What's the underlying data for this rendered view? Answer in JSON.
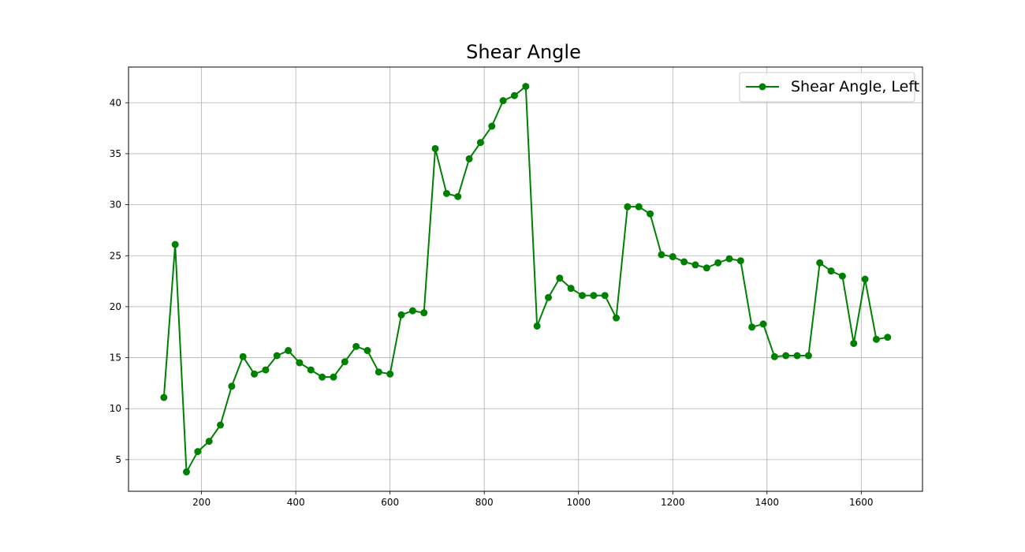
{
  "chart_data": {
    "type": "line",
    "title": "Shear Angle",
    "xlabel": "",
    "ylabel": "",
    "xlim": [
      45,
      1730
    ],
    "ylim": [
      1.9,
      43.5
    ],
    "x_ticks": [
      200,
      400,
      600,
      800,
      1000,
      1200,
      1400,
      1600
    ],
    "y_ticks": [
      5,
      10,
      15,
      20,
      25,
      30,
      35,
      40
    ],
    "grid": true,
    "legend_position": "top-right",
    "series": [
      {
        "name": "Shear Angle, Left",
        "color": "#008000",
        "marker": "circle",
        "x": [
          120,
          144,
          168,
          192,
          216,
          240,
          264,
          288,
          312,
          336,
          360,
          384,
          408,
          432,
          456,
          480,
          504,
          528,
          552,
          576,
          600,
          624,
          648,
          672,
          696,
          720,
          744,
          768,
          792,
          816,
          840,
          864,
          888,
          912,
          936,
          960,
          984,
          1008,
          1032,
          1056,
          1080,
          1104,
          1128,
          1152,
          1176,
          1200,
          1224,
          1248,
          1272,
          1296,
          1320,
          1344,
          1368,
          1392,
          1416,
          1440,
          1464,
          1488,
          1512,
          1536,
          1560,
          1584,
          1608,
          1632,
          1656
        ],
        "values": [
          11.1,
          26.1,
          3.8,
          5.8,
          6.8,
          8.4,
          12.2,
          15.1,
          13.4,
          13.8,
          15.2,
          15.7,
          14.5,
          13.8,
          13.1,
          13.1,
          14.6,
          16.1,
          15.7,
          13.6,
          13.4,
          19.2,
          19.6,
          19.4,
          35.5,
          31.1,
          30.8,
          34.5,
          36.1,
          37.7,
          40.2,
          40.7,
          41.6,
          18.1,
          20.9,
          22.8,
          21.8,
          21.1,
          21.1,
          21.1,
          18.9,
          29.8,
          29.8,
          29.1,
          25.1,
          24.9,
          24.4,
          24.1,
          23.8,
          24.3,
          24.7,
          24.5,
          18.0,
          18.3,
          15.1,
          15.2,
          15.2,
          15.2,
          24.3,
          23.5,
          23.0,
          16.4,
          22.7,
          16.8,
          17.0
        ]
      }
    ]
  }
}
